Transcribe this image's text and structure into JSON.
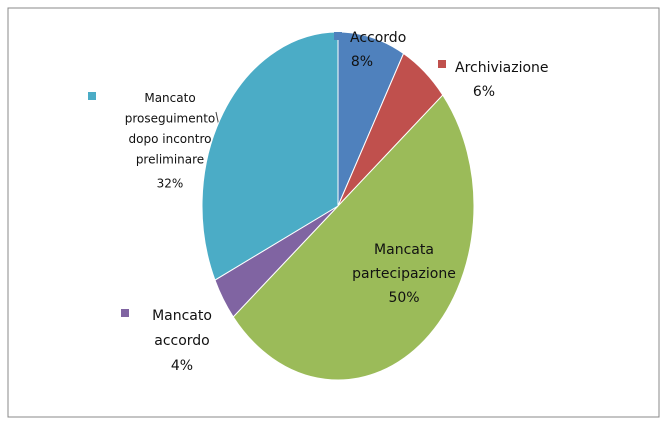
{
  "chart_data": {
    "type": "pie",
    "categories": [
      "Accordo",
      "Archiviazione",
      "Mancata partecipazione",
      "Mancato accordo",
      "Mancato proseguimento dopo incontro preliminare"
    ],
    "values": [
      8,
      6,
      50,
      4,
      32
    ],
    "value_labels": [
      "8%",
      "6%",
      "50%",
      "4%",
      "32%"
    ],
    "colors": [
      "#4f81bd",
      "#c0504d",
      "#9bbb59",
      "#8064a2",
      "#4bacc6"
    ]
  }
}
